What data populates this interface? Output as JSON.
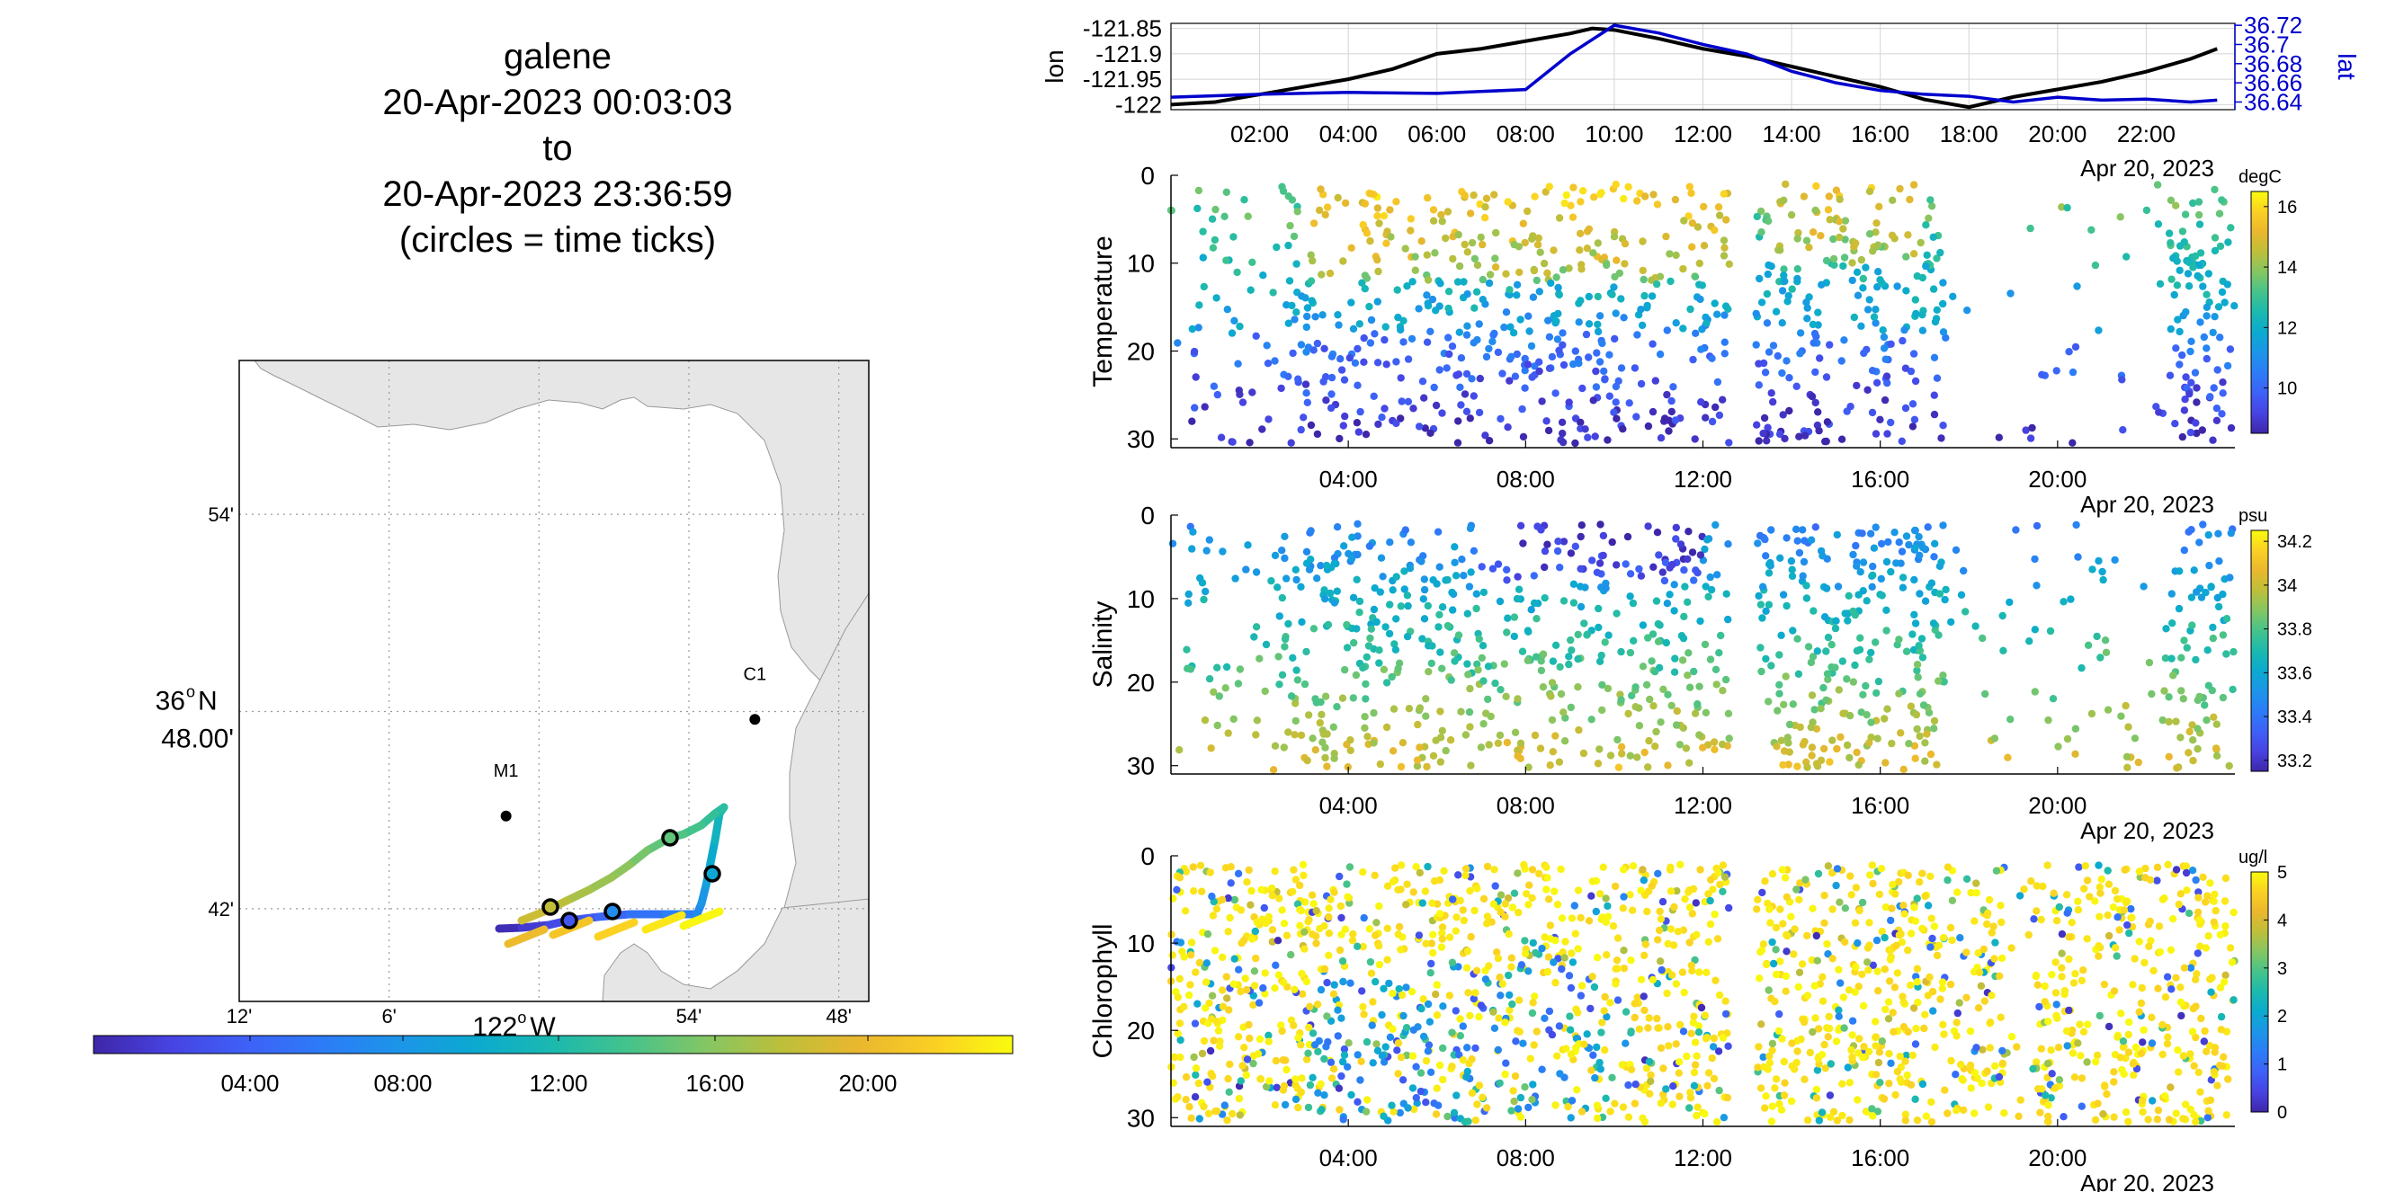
{
  "title_block": {
    "line1": "galene",
    "line2": "20-Apr-2023 00:03:03",
    "line3": "to",
    "line4": "20-Apr-2023 23:36:59",
    "line5": "(circles = time ticks)"
  },
  "chart_data": [
    {
      "type": "map",
      "name": "track map",
      "lat_ticks": [
        "54'",
        "36°N 48.00'",
        "42'"
      ],
      "lon_ticks": [
        "12'",
        "6'",
        "122°W",
        "54'",
        "48'"
      ],
      "stations": [
        {
          "name": "C1",
          "lon": -121.856,
          "lat": 36.796
        },
        {
          "name": "M1",
          "lon": -122.022,
          "lat": 36.747
        }
      ],
      "track_note": "colored by time; circles = time ticks",
      "time_colorbar_ticks": [
        "04:00",
        "08:00",
        "12:00",
        "16:00",
        "20:00"
      ]
    },
    {
      "type": "line",
      "name": "position vs time",
      "x_ticks": [
        "02:00",
        "04:00",
        "06:00",
        "08:00",
        "10:00",
        "12:00",
        "14:00",
        "16:00",
        "18:00",
        "20:00",
        "22:00"
      ],
      "x_date_label": "Apr 20, 2023",
      "ylabel_left": "lon",
      "ylabel_right": "lat",
      "left_ticks": [
        "-121.85",
        "-121.9",
        "-121.95",
        "-122"
      ],
      "right_ticks": [
        "36.72",
        "36.7",
        "36.68",
        "36.66",
        "36.64"
      ],
      "ylim_left": [
        -122.01,
        -121.84
      ],
      "ylim_right": [
        36.632,
        36.722
      ],
      "grid": true,
      "series": [
        {
          "name": "lon",
          "color": "#000000",
          "x_hours": [
            0,
            1,
            2,
            3,
            4,
            5,
            6,
            7,
            8,
            9,
            9.5,
            10,
            11,
            12,
            13,
            14,
            15,
            16,
            17,
            18,
            19,
            20,
            21,
            22,
            23,
            23.6
          ],
          "values": [
            -122.0,
            -121.995,
            -121.98,
            -121.965,
            -121.95,
            -121.93,
            -121.9,
            -121.89,
            -121.875,
            -121.86,
            -121.85,
            -121.853,
            -121.87,
            -121.89,
            -121.905,
            -121.925,
            -121.945,
            -121.965,
            -121.99,
            -122.005,
            -121.985,
            -121.97,
            -121.955,
            -121.935,
            -121.91,
            -121.89
          ]
        },
        {
          "name": "lat",
          "color": "#0000cc",
          "x_hours": [
            0,
            2,
            4,
            6,
            8,
            9,
            10,
            11,
            12,
            13,
            14,
            15,
            16,
            17,
            18,
            19,
            20,
            21,
            22,
            23,
            23.6
          ],
          "values": [
            36.645,
            36.648,
            36.65,
            36.649,
            36.653,
            36.69,
            36.72,
            36.712,
            36.7,
            36.69,
            36.672,
            36.66,
            36.652,
            36.648,
            36.646,
            36.64,
            36.645,
            36.642,
            36.643,
            36.64,
            36.642
          ]
        }
      ]
    },
    {
      "type": "scatter",
      "name": "Temperature",
      "ylabel": "Temperature",
      "y_ticks": [
        "0",
        "10",
        "20",
        "30"
      ],
      "x_ticks": [
        "04:00",
        "08:00",
        "12:00",
        "16:00",
        "20:00"
      ],
      "x_date_label": "Apr 20, 2023",
      "ylim": [
        0,
        31
      ],
      "y_reversed": true,
      "colorbar": {
        "unit": "degC",
        "ticks": [
          "16",
          "14",
          "12",
          "10"
        ],
        "range": [
          8.5,
          16.5
        ]
      },
      "regime": "cold",
      "seed": 11
    },
    {
      "type": "scatter",
      "name": "Salinity",
      "ylabel": "Salinity",
      "y_ticks": [
        "0",
        "10",
        "20",
        "30"
      ],
      "x_ticks": [
        "04:00",
        "08:00",
        "12:00",
        "16:00",
        "20:00"
      ],
      "x_date_label": "Apr 20, 2023",
      "ylim": [
        0,
        31
      ],
      "y_reversed": true,
      "colorbar": {
        "unit": "psu",
        "ticks": [
          "34.2",
          "34",
          "33.8",
          "33.6",
          "33.4",
          "33.2"
        ],
        "range": [
          33.15,
          34.25
        ]
      },
      "regime": "salt",
      "seed": 23
    },
    {
      "type": "scatter",
      "name": "Chlorophyll",
      "ylabel": "Chlorophyll",
      "y_ticks": [
        "0",
        "10",
        "20",
        "30"
      ],
      "x_ticks": [
        "04:00",
        "08:00",
        "12:00",
        "16:00",
        "20:00"
      ],
      "x_date_label": "Apr 20, 2023",
      "ylim": [
        0,
        31
      ],
      "y_reversed": true,
      "colorbar": {
        "unit": "ug/l",
        "ticks": [
          "5",
          "4",
          "3",
          "2",
          "1",
          "0"
        ],
        "range": [
          0,
          5
        ]
      },
      "regime": "chl",
      "seed": 37
    }
  ]
}
